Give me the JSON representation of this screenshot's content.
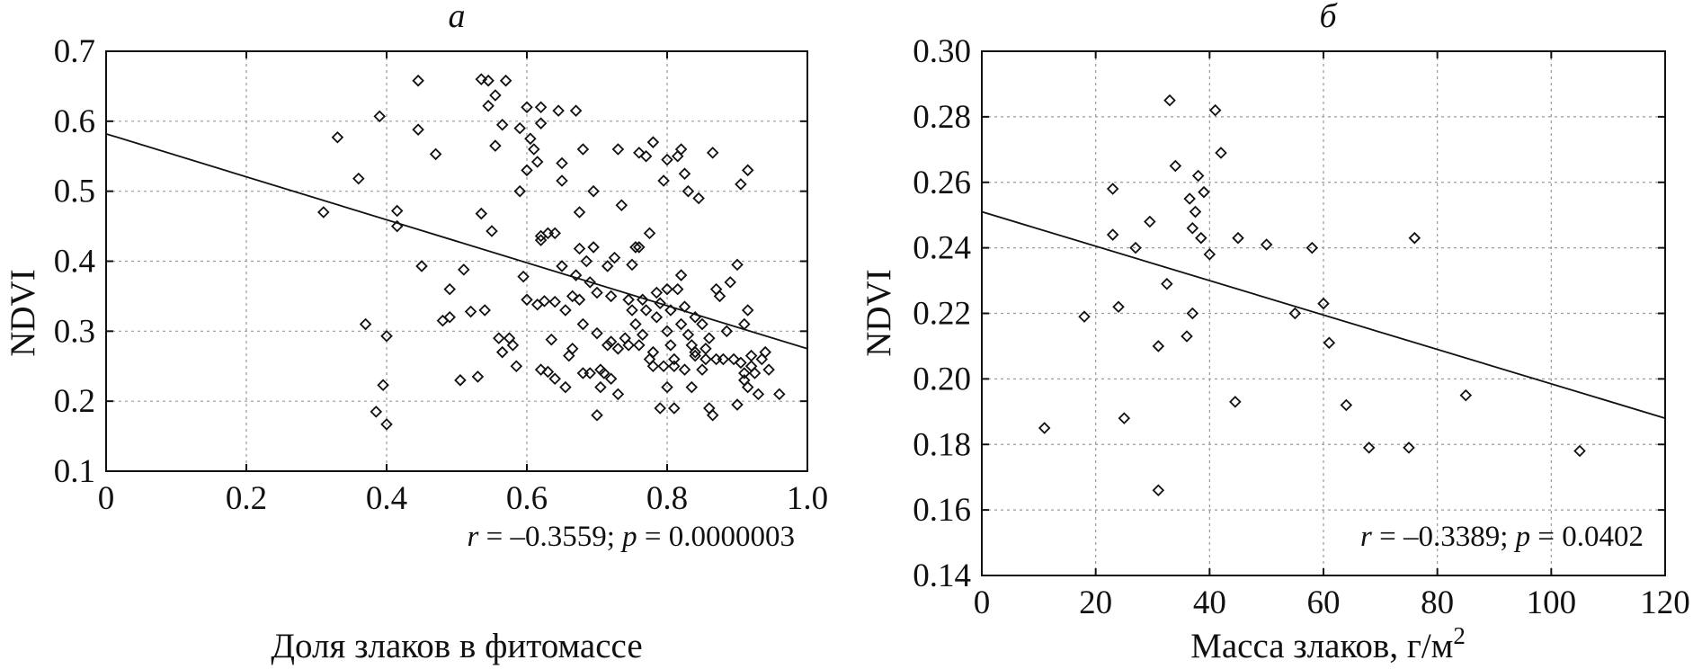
{
  "chart_data": [
    {
      "type": "scatter",
      "panel_label": "а",
      "title": "а",
      "xlabel": "Доля злаков в фитомассе",
      "ylabel": "NDVI",
      "xlim": [
        0,
        1.0
      ],
      "ylim": [
        0.1,
        0.7
      ],
      "xticks": [
        0,
        0.2,
        0.4,
        0.6,
        0.8,
        1.0
      ],
      "xtick_labels": [
        "0",
        "0.2",
        "0.4",
        "0.6",
        "0.8",
        "1.0"
      ],
      "yticks": [
        0.1,
        0.2,
        0.3,
        0.4,
        0.5,
        0.6,
        0.7
      ],
      "ytick_labels": [
        "0.1",
        "0.2",
        "0.3",
        "0.4",
        "0.5",
        "0.6",
        "0.7"
      ],
      "grid": true,
      "annotation": {
        "r_label": "r",
        "r_text": " = –0.3559; ",
        "p_label": "p",
        "p_text": " = 0.0000003"
      },
      "fit_line": {
        "x": [
          0,
          1.0
        ],
        "y": [
          0.582,
          0.275
        ]
      },
      "points": [
        [
          0.31,
          0.47
        ],
        [
          0.33,
          0.577
        ],
        [
          0.36,
          0.518
        ],
        [
          0.37,
          0.31
        ],
        [
          0.385,
          0.185
        ],
        [
          0.39,
          0.607
        ],
        [
          0.395,
          0.223
        ],
        [
          0.4,
          0.293
        ],
        [
          0.4,
          0.167
        ],
        [
          0.415,
          0.472
        ],
        [
          0.415,
          0.45
        ],
        [
          0.445,
          0.658
        ],
        [
          0.445,
          0.588
        ],
        [
          0.45,
          0.393
        ],
        [
          0.47,
          0.553
        ],
        [
          0.48,
          0.315
        ],
        [
          0.49,
          0.36
        ],
        [
          0.49,
          0.32
        ],
        [
          0.505,
          0.23
        ],
        [
          0.51,
          0.388
        ],
        [
          0.52,
          0.328
        ],
        [
          0.53,
          0.235
        ],
        [
          0.535,
          0.66
        ],
        [
          0.535,
          0.468
        ],
        [
          0.54,
          0.33
        ],
        [
          0.545,
          0.658
        ],
        [
          0.545,
          0.622
        ],
        [
          0.55,
          0.443
        ],
        [
          0.555,
          0.637
        ],
        [
          0.555,
          0.565
        ],
        [
          0.56,
          0.29
        ],
        [
          0.565,
          0.595
        ],
        [
          0.565,
          0.27
        ],
        [
          0.57,
          0.658
        ],
        [
          0.575,
          0.29
        ],
        [
          0.58,
          0.28
        ],
        [
          0.585,
          0.25
        ],
        [
          0.59,
          0.59
        ],
        [
          0.59,
          0.5
        ],
        [
          0.595,
          0.378
        ],
        [
          0.6,
          0.53
        ],
        [
          0.6,
          0.345
        ],
        [
          0.6,
          0.62
        ],
        [
          0.605,
          0.575
        ],
        [
          0.61,
          0.56
        ],
        [
          0.615,
          0.542
        ],
        [
          0.615,
          0.338
        ],
        [
          0.62,
          0.62
        ],
        [
          0.62,
          0.597
        ],
        [
          0.62,
          0.436
        ],
        [
          0.62,
          0.43
        ],
        [
          0.62,
          0.245
        ],
        [
          0.625,
          0.343
        ],
        [
          0.63,
          0.44
        ],
        [
          0.63,
          0.242
        ],
        [
          0.635,
          0.288
        ],
        [
          0.64,
          0.44
        ],
        [
          0.64,
          0.342
        ],
        [
          0.64,
          0.232
        ],
        [
          0.645,
          0.615
        ],
        [
          0.65,
          0.393
        ],
        [
          0.65,
          0.54
        ],
        [
          0.65,
          0.515
        ],
        [
          0.655,
          0.33
        ],
        [
          0.655,
          0.22
        ],
        [
          0.66,
          0.265
        ],
        [
          0.665,
          0.35
        ],
        [
          0.665,
          0.275
        ],
        [
          0.67,
          0.615
        ],
        [
          0.67,
          0.38
        ],
        [
          0.675,
          0.47
        ],
        [
          0.675,
          0.418
        ],
        [
          0.675,
          0.345
        ],
        [
          0.68,
          0.56
        ],
        [
          0.68,
          0.31
        ],
        [
          0.68,
          0.24
        ],
        [
          0.685,
          0.4
        ],
        [
          0.69,
          0.24
        ],
        [
          0.69,
          0.37
        ],
        [
          0.695,
          0.5
        ],
        [
          0.695,
          0.42
        ],
        [
          0.7,
          0.18
        ],
        [
          0.7,
          0.355
        ],
        [
          0.7,
          0.297
        ],
        [
          0.705,
          0.245
        ],
        [
          0.705,
          0.22
        ],
        [
          0.71,
          0.24
        ],
        [
          0.715,
          0.393
        ],
        [
          0.715,
          0.28
        ],
        [
          0.72,
          0.232
        ],
        [
          0.72,
          0.35
        ],
        [
          0.72,
          0.285
        ],
        [
          0.725,
          0.405
        ],
        [
          0.73,
          0.21
        ],
        [
          0.73,
          0.275
        ],
        [
          0.73,
          0.56
        ],
        [
          0.735,
          0.48
        ],
        [
          0.74,
          0.29
        ],
        [
          0.745,
          0.345
        ],
        [
          0.745,
          0.28
        ],
        [
          0.75,
          0.33
        ],
        [
          0.75,
          0.395
        ],
        [
          0.755,
          0.42
        ],
        [
          0.755,
          0.31
        ],
        [
          0.76,
          0.28
        ],
        [
          0.76,
          0.555
        ],
        [
          0.76,
          0.42
        ],
        [
          0.765,
          0.345
        ],
        [
          0.765,
          0.295
        ],
        [
          0.77,
          0.55
        ],
        [
          0.77,
          0.33
        ],
        [
          0.775,
          0.26
        ],
        [
          0.775,
          0.44
        ],
        [
          0.78,
          0.57
        ],
        [
          0.78,
          0.27
        ],
        [
          0.78,
          0.25
        ],
        [
          0.785,
          0.355
        ],
        [
          0.785,
          0.32
        ],
        [
          0.79,
          0.34
        ],
        [
          0.79,
          0.19
        ],
        [
          0.795,
          0.25
        ],
        [
          0.795,
          0.515
        ],
        [
          0.8,
          0.36
        ],
        [
          0.8,
          0.3
        ],
        [
          0.8,
          0.22
        ],
        [
          0.8,
          0.545
        ],
        [
          0.805,
          0.33
        ],
        [
          0.805,
          0.28
        ],
        [
          0.81,
          0.25
        ],
        [
          0.81,
          0.26
        ],
        [
          0.81,
          0.19
        ],
        [
          0.815,
          0.55
        ],
        [
          0.815,
          0.36
        ],
        [
          0.82,
          0.56
        ],
        [
          0.82,
          0.38
        ],
        [
          0.82,
          0.31
        ],
        [
          0.825,
          0.245
        ],
        [
          0.825,
          0.525
        ],
        [
          0.825,
          0.335
        ],
        [
          0.83,
          0.295
        ],
        [
          0.83,
          0.5
        ],
        [
          0.835,
          0.28
        ],
        [
          0.835,
          0.22
        ],
        [
          0.84,
          0.265
        ],
        [
          0.84,
          0.27
        ],
        [
          0.84,
          0.32
        ],
        [
          0.845,
          0.49
        ],
        [
          0.85,
          0.31
        ],
        [
          0.85,
          0.245
        ],
        [
          0.855,
          0.26
        ],
        [
          0.855,
          0.275
        ],
        [
          0.86,
          0.19
        ],
        [
          0.86,
          0.29
        ],
        [
          0.865,
          0.18
        ],
        [
          0.865,
          0.555
        ],
        [
          0.87,
          0.36
        ],
        [
          0.87,
          0.26
        ],
        [
          0.875,
          0.35
        ],
        [
          0.88,
          0.26
        ],
        [
          0.885,
          0.3
        ],
        [
          0.89,
          0.37
        ],
        [
          0.895,
          0.26
        ],
        [
          0.9,
          0.395
        ],
        [
          0.9,
          0.195
        ],
        [
          0.905,
          0.51
        ],
        [
          0.905,
          0.255
        ],
        [
          0.91,
          0.31
        ],
        [
          0.91,
          0.24
        ],
        [
          0.91,
          0.23
        ],
        [
          0.915,
          0.53
        ],
        [
          0.915,
          0.33
        ],
        [
          0.915,
          0.22
        ],
        [
          0.92,
          0.265
        ],
        [
          0.92,
          0.25
        ],
        [
          0.925,
          0.24
        ],
        [
          0.93,
          0.21
        ],
        [
          0.935,
          0.26
        ],
        [
          0.94,
          0.27
        ],
        [
          0.945,
          0.245
        ],
        [
          0.96,
          0.21
        ]
      ]
    },
    {
      "type": "scatter",
      "panel_label": "б",
      "title": "б",
      "xlabel": "Масса злаков, г/м",
      "xlabel_superscript": "2",
      "ylabel": "NDVI",
      "xlim": [
        0,
        120
      ],
      "ylim": [
        0.14,
        0.3
      ],
      "xticks": [
        0,
        20,
        40,
        60,
        80,
        100,
        120
      ],
      "xtick_labels": [
        "0",
        "20",
        "40",
        "60",
        "80",
        "100",
        "120"
      ],
      "yticks": [
        0.14,
        0.16,
        0.18,
        0.2,
        0.22,
        0.24,
        0.26,
        0.28,
        0.3
      ],
      "ytick_labels": [
        "0.14",
        "0.16",
        "0.18",
        "0.20",
        "0.22",
        "0.24",
        "0.26",
        "0.28",
        "0.30"
      ],
      "grid": true,
      "annotation": {
        "r_label": "r",
        "r_text": " = –0.3389; ",
        "p_label": "p",
        "p_text": " = 0.0402"
      },
      "fit_line": {
        "x": [
          0,
          120
        ],
        "y": [
          0.251,
          0.188
        ]
      },
      "points": [
        [
          11,
          0.185
        ],
        [
          18,
          0.219
        ],
        [
          23,
          0.258
        ],
        [
          23,
          0.244
        ],
        [
          24,
          0.222
        ],
        [
          25,
          0.188
        ],
        [
          27,
          0.24
        ],
        [
          29.5,
          0.248
        ],
        [
          31,
          0.21
        ],
        [
          31,
          0.166
        ],
        [
          32.5,
          0.229
        ],
        [
          33,
          0.285
        ],
        [
          34,
          0.265
        ],
        [
          36,
          0.213
        ],
        [
          36.5,
          0.255
        ],
        [
          37,
          0.246
        ],
        [
          37,
          0.22
        ],
        [
          37.5,
          0.251
        ],
        [
          38,
          0.262
        ],
        [
          38.5,
          0.243
        ],
        [
          39,
          0.257
        ],
        [
          40,
          0.238
        ],
        [
          41,
          0.282
        ],
        [
          42,
          0.269
        ],
        [
          44.5,
          0.193
        ],
        [
          45,
          0.243
        ],
        [
          50,
          0.241
        ],
        [
          55,
          0.22
        ],
        [
          58,
          0.24
        ],
        [
          60,
          0.223
        ],
        [
          61,
          0.211
        ],
        [
          64,
          0.192
        ],
        [
          68,
          0.179
        ],
        [
          75,
          0.179
        ],
        [
          76,
          0.243
        ],
        [
          85,
          0.195
        ],
        [
          105,
          0.178
        ]
      ]
    }
  ]
}
